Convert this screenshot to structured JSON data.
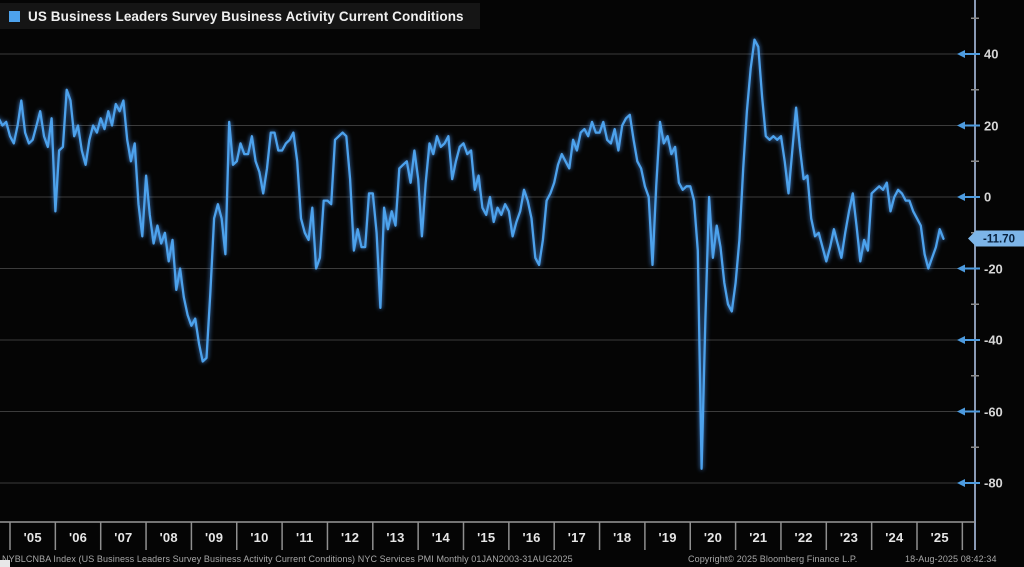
{
  "header": {
    "title": "US Business Leaders Survey Business Activity Current Conditions",
    "legend_marker_color": "#4da2ec"
  },
  "y_axis": {
    "major_tick_labels": [
      "40",
      "20",
      "0",
      "-20",
      "-40",
      "-60",
      "-80"
    ],
    "last_value_label": "-11.70",
    "badge_color": "#7db5e8",
    "badge_text_color": "#07203c"
  },
  "x_axis": {
    "labels": [
      "'05",
      "'06",
      "'07",
      "'08",
      "'09",
      "'10",
      "'11",
      "'12",
      "'13",
      "'14",
      "'15",
      "'16",
      "'17",
      "'18",
      "'19",
      "'20",
      "'21",
      "'22",
      "'23",
      "'24",
      "'25"
    ]
  },
  "footer": {
    "left": "NYBLCNBA Index (US Business Leaders Survey Business Activity Current Conditions) NYC Services PMI  Monthly 01JAN2003-31AUG2025",
    "copyright": "Copyright© 2025 Bloomberg Finance L.P.",
    "timestamp": "18-Aug-2025 08:42:34"
  },
  "chart_data": {
    "type": "line",
    "title": "US Business Leaders Survey Business Activity Current Conditions",
    "frequency": "Monthly",
    "x_start": "2004-10",
    "x_end": "2025-08",
    "x_tick_labels": [
      "'05",
      "'06",
      "'07",
      "'08",
      "'09",
      "'10",
      "'11",
      "'12",
      "'13",
      "'14",
      "'15",
      "'16",
      "'17",
      "'18",
      "'19",
      "'20",
      "'21",
      "'22",
      "'23",
      "'24",
      "'25"
    ],
    "y_major_ticks": [
      40,
      20,
      0,
      -20,
      -40,
      -60,
      -80
    ],
    "y_minor_ticks": [
      50,
      30,
      10,
      -10,
      -30,
      -50,
      -70
    ],
    "ylim": [
      -91,
      55
    ],
    "grid": true,
    "legend_position": "top-left",
    "line_color": "#4da2ec",
    "last_value": -11.7,
    "last_value_label": "-11.70",
    "values": [
      22,
      20,
      21,
      17,
      15,
      20,
      27,
      18,
      15,
      16,
      20,
      24,
      17,
      14,
      22,
      -4,
      13,
      14,
      30,
      27,
      17,
      20,
      13,
      9,
      16,
      20,
      18,
      22,
      19,
      24,
      20,
      26,
      24,
      27,
      16,
      10,
      15,
      -2,
      -11,
      6,
      -5,
      -13,
      -8,
      -13,
      -10,
      -18,
      -12,
      -26,
      -20,
      -28,
      -33,
      -36,
      -34,
      -41,
      -46,
      -45,
      -27,
      -6,
      -2,
      -6,
      -16,
      21,
      9,
      10,
      15,
      12,
      12,
      17,
      10,
      7,
      1,
      8,
      18,
      18,
      13,
      13,
      15,
      16,
      18,
      10,
      -6,
      -10,
      -12,
      -3,
      -20,
      -17,
      -1,
      -1,
      -2,
      16,
      17,
      18,
      17,
      5,
      -15,
      -9,
      -14,
      -14,
      1,
      1,
      -10,
      -31,
      -3,
      -9,
      -4,
      -8,
      8,
      9,
      10,
      4,
      13,
      5,
      -11,
      4,
      15,
      12,
      17,
      14,
      15,
      17,
      5,
      10,
      14,
      15,
      12,
      13,
      2,
      6,
      -3,
      -5,
      0,
      -7,
      -3,
      -5,
      -2,
      -4,
      -11,
      -7,
      -4,
      2,
      -1,
      -6,
      -17,
      -19,
      -12,
      -1,
      1,
      4,
      9,
      12,
      10,
      8,
      16,
      13,
      18,
      19,
      17,
      21,
      18,
      18,
      21,
      16,
      15,
      19,
      13,
      20,
      22,
      23,
      16,
      10,
      8,
      3,
      0,
      -19,
      3,
      21,
      15,
      17,
      12,
      14,
      4,
      2,
      3,
      3,
      -1,
      -15,
      -76,
      -34,
      0,
      -17,
      -8,
      -14,
      -24,
      -30,
      -32,
      -24,
      -12,
      8,
      24,
      36,
      44,
      42,
      28,
      17,
      16,
      17,
      16,
      17,
      10,
      1,
      13,
      25,
      14,
      5,
      6,
      -6,
      -11,
      -10,
      -14,
      -18,
      -14,
      -9,
      -13,
      -17,
      -10,
      -4,
      1,
      -8,
      -18,
      -12,
      -15,
      1,
      2,
      3,
      2,
      4,
      -4,
      0,
      2,
      1,
      -1,
      -1,
      -4,
      -6,
      -8,
      -16,
      -20,
      -17,
      -14,
      -9,
      -11.7
    ]
  }
}
